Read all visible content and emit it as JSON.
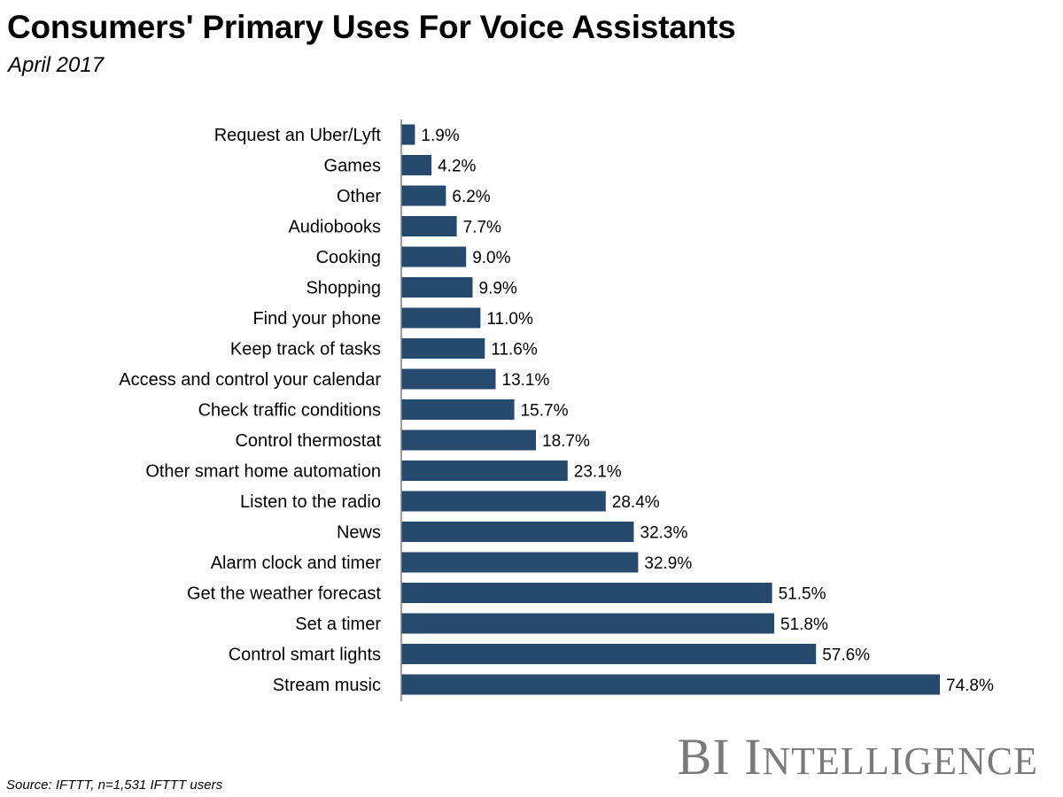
{
  "title": "Consumers' Primary Uses For Voice Assistants",
  "subtitle": "April 2017",
  "source": "Source: IFTTT, n=1,531 IFTTT users",
  "brand": {
    "part1": "BI",
    "part2_initial": "I",
    "part2_rest": "NTELLIGENCE"
  },
  "colors": {
    "bar": "#264a6e",
    "axis": "#7f7f7f",
    "brand": "#7a7a7a"
  },
  "chart_data": {
    "type": "bar",
    "orientation": "horizontal",
    "categories": [
      "Request an Uber/Lyft",
      "Games",
      "Other",
      "Audiobooks",
      "Cooking",
      "Shopping",
      "Find your phone",
      "Keep track of tasks",
      "Access and control your calendar",
      "Check traffic conditions",
      "Control thermostat",
      "Other smart home automation",
      "Listen to the radio",
      "News",
      "Alarm clock and timer",
      "Get the weather forecast",
      "Set a timer",
      "Control smart lights",
      "Stream music"
    ],
    "values": [
      1.9,
      4.2,
      6.2,
      7.7,
      9.0,
      9.9,
      11.0,
      11.6,
      13.1,
      15.7,
      18.7,
      23.1,
      28.4,
      32.3,
      32.9,
      51.5,
      51.8,
      57.6,
      74.8
    ],
    "value_labels": [
      "1.9%",
      "4.2%",
      "6.2%",
      "7.7%",
      "9.0%",
      "9.9%",
      "11.0%",
      "11.6%",
      "13.1%",
      "15.7%",
      "18.7%",
      "23.1%",
      "28.4%",
      "32.3%",
      "32.9%",
      "51.5%",
      "51.8%",
      "57.6%",
      "74.8%"
    ],
    "xlim": [
      0,
      75
    ],
    "grid": false,
    "legend": "none"
  }
}
